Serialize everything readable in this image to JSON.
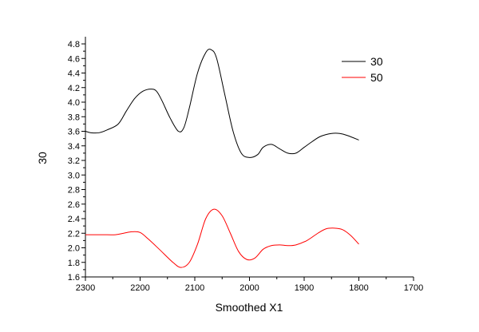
{
  "chart_data": {
    "type": "line",
    "xlabel": "Smoothed X1",
    "ylabel": "30",
    "xlim": [
      2300,
      1700
    ],
    "ylim": [
      1.6,
      4.8
    ],
    "x_ticks": [
      "2300",
      "2200",
      "2100",
      "2000",
      "1900",
      "1800",
      "1700"
    ],
    "y_ticks": [
      "1.6",
      "1.8",
      "2.0",
      "2.2",
      "2.4",
      "2.6",
      "2.8",
      "3.0",
      "3.2",
      "3.4",
      "3.6",
      "3.8",
      "4.0",
      "4.2",
      "4.4",
      "4.6",
      "4.8"
    ],
    "legend_position": "top-right",
    "grid": false,
    "series": [
      {
        "name": "30",
        "color": "#000000",
        "points": [
          [
            2300,
            3.6
          ],
          [
            2290,
            3.58
          ],
          [
            2275,
            3.58
          ],
          [
            2260,
            3.62
          ],
          [
            2240,
            3.7
          ],
          [
            2225,
            3.88
          ],
          [
            2210,
            4.05
          ],
          [
            2195,
            4.15
          ],
          [
            2180,
            4.18
          ],
          [
            2170,
            4.15
          ],
          [
            2160,
            4.02
          ],
          [
            2145,
            3.78
          ],
          [
            2130,
            3.6
          ],
          [
            2120,
            3.65
          ],
          [
            2110,
            3.92
          ],
          [
            2095,
            4.4
          ],
          [
            2080,
            4.68
          ],
          [
            2070,
            4.72
          ],
          [
            2060,
            4.6
          ],
          [
            2045,
            4.1
          ],
          [
            2030,
            3.6
          ],
          [
            2015,
            3.3
          ],
          [
            2000,
            3.24
          ],
          [
            1985,
            3.28
          ],
          [
            1975,
            3.38
          ],
          [
            1960,
            3.42
          ],
          [
            1945,
            3.36
          ],
          [
            1930,
            3.3
          ],
          [
            1915,
            3.3
          ],
          [
            1900,
            3.38
          ],
          [
            1885,
            3.46
          ],
          [
            1870,
            3.53
          ],
          [
            1850,
            3.57
          ],
          [
            1835,
            3.57
          ],
          [
            1820,
            3.54
          ],
          [
            1800,
            3.48
          ]
        ]
      },
      {
        "name": "50",
        "color": "#ff0000",
        "points": [
          [
            2300,
            2.18
          ],
          [
            2270,
            2.18
          ],
          [
            2245,
            2.18
          ],
          [
            2230,
            2.2
          ],
          [
            2215,
            2.22
          ],
          [
            2200,
            2.21
          ],
          [
            2185,
            2.12
          ],
          [
            2165,
            1.98
          ],
          [
            2140,
            1.8
          ],
          [
            2125,
            1.73
          ],
          [
            2110,
            1.8
          ],
          [
            2095,
            2.05
          ],
          [
            2080,
            2.4
          ],
          [
            2065,
            2.53
          ],
          [
            2050,
            2.44
          ],
          [
            2035,
            2.2
          ],
          [
            2020,
            1.95
          ],
          [
            2005,
            1.84
          ],
          [
            1990,
            1.86
          ],
          [
            1975,
            1.98
          ],
          [
            1960,
            2.03
          ],
          [
            1945,
            2.04
          ],
          [
            1930,
            2.03
          ],
          [
            1915,
            2.04
          ],
          [
            1895,
            2.1
          ],
          [
            1875,
            2.2
          ],
          [
            1860,
            2.26
          ],
          [
            1845,
            2.27
          ],
          [
            1830,
            2.25
          ],
          [
            1815,
            2.17
          ],
          [
            1800,
            2.05
          ]
        ]
      }
    ]
  }
}
